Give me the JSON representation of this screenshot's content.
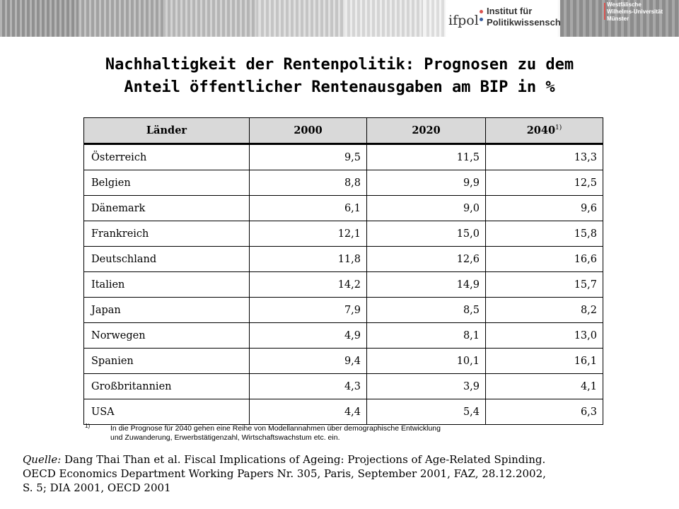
{
  "header": {
    "logo_mark": "ifpol",
    "logo_line1": "Institut für",
    "logo_line2": "Politikwissenschaft",
    "uni_line1": "Westfälische",
    "uni_line2": "Wilhelms-Universität",
    "uni_line3": "Münster",
    "colors": {
      "accent_red": "#d9534f",
      "accent_blue": "#3a5fa0"
    }
  },
  "title_line1": "Nachhaltigkeit der Rentenpolitik: Prognosen zu dem",
  "title_line2": "Anteil öffentlicher Rentenausgaben am BIP in %",
  "chart_data": {
    "type": "table",
    "columns": [
      "Länder",
      "2000",
      "2020",
      "2040"
    ],
    "column_footnote_marker": "1)",
    "rows": [
      [
        "Österreich",
        "9,5",
        "11,5",
        "13,3"
      ],
      [
        "Belgien",
        "8,8",
        "9,9",
        "12,5"
      ],
      [
        "Dänemark",
        "6,1",
        "9,0",
        "9,6"
      ],
      [
        "Frankreich",
        "12,1",
        "15,0",
        "15,8"
      ],
      [
        "Deutschland",
        "11,8",
        "12,6",
        "16,6"
      ],
      [
        "Italien",
        "14,2",
        "14,9",
        "15,7"
      ],
      [
        "Japan",
        "7,9",
        "8,5",
        "8,2"
      ],
      [
        "Norwegen",
        "4,9",
        "8,1",
        "13,0"
      ],
      [
        "Spanien",
        "9,4",
        "10,1",
        "16,1"
      ],
      [
        "Großbritannien",
        "4,3",
        "3,9",
        "4,1"
      ],
      [
        "USA",
        "4,4",
        "5,4",
        "6,3"
      ]
    ]
  },
  "footnote": {
    "marker": "1)",
    "line1": "In die Prognose für 2040 gehen  eine Reihe von Modellannahmen über demographische Entwicklung",
    "line2": "und Zuwanderung, Erwerbstätigenzahl, Wirtschaftswachstum etc. ein."
  },
  "source": {
    "label": "Quelle:",
    "line1": " Dang Thai Than et al. Fiscal Implications of Ageing: Projections of Age-Related Spinding.",
    "line2": "OECD Economics Department Working Papers Nr. 305, Paris, September 2001, FAZ, 28.12.2002,",
    "line3": "S. 5; DIA 2001, OECD 2001"
  }
}
